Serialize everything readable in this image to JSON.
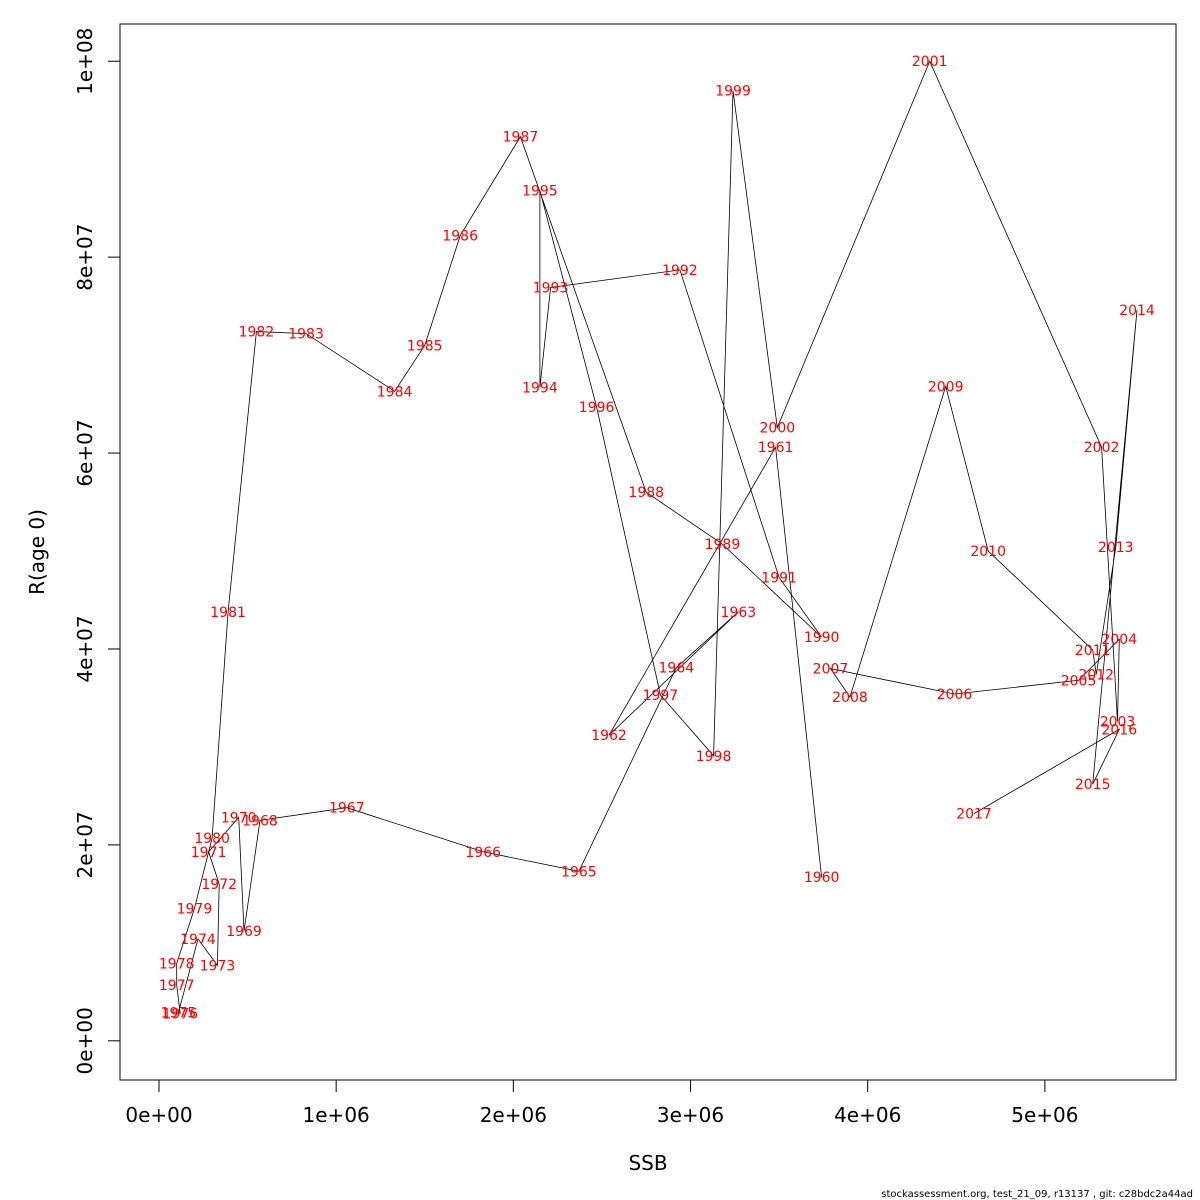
{
  "chart_data": {
    "type": "line",
    "title": "",
    "xlabel": "SSB",
    "ylabel": "R(age 0)",
    "xlim": [
      -220000,
      5740000
    ],
    "ylim": [
      -4000000,
      103800000
    ],
    "x_ticks": [
      0,
      1000000,
      2000000,
      3000000,
      4000000,
      5000000
    ],
    "x_tick_labels": [
      "0e+00",
      "1e+06",
      "2e+06",
      "3e+06",
      "4e+06",
      "5e+06"
    ],
    "y_ticks": [
      0,
      20000000,
      40000000,
      60000000,
      80000000,
      100000000
    ],
    "y_tick_labels": [
      "0e+00",
      "2e+07",
      "4e+07",
      "6e+07",
      "8e+07",
      "1e+08"
    ],
    "grid": false,
    "line_color": "#000000",
    "label_color": "#ff0000",
    "points": [
      {
        "year": "1960",
        "ssb": 3740000,
        "r": 16700000
      },
      {
        "year": "1961",
        "ssb": 3480000,
        "r": 60600000
      },
      {
        "year": "1962",
        "ssb": 2540000,
        "r": 31200000
      },
      {
        "year": "1963",
        "ssb": 3270000,
        "r": 43800000
      },
      {
        "year": "1964",
        "ssb": 2920000,
        "r": 38100000
      },
      {
        "year": "1965",
        "ssb": 2370000,
        "r": 17300000
      },
      {
        "year": "1966",
        "ssb": 1830000,
        "r": 19300000
      },
      {
        "year": "1967",
        "ssb": 1060000,
        "r": 23800000
      },
      {
        "year": "1968",
        "ssb": 570000,
        "r": 22500000
      },
      {
        "year": "1969",
        "ssb": 480000,
        "r": 11200000
      },
      {
        "year": "1970",
        "ssb": 450000,
        "r": 22800000
      },
      {
        "year": "1971",
        "ssb": 280000,
        "r": 19300000
      },
      {
        "year": "1972",
        "ssb": 340000,
        "r": 16000000
      },
      {
        "year": "1973",
        "ssb": 330000,
        "r": 7700000
      },
      {
        "year": "1974",
        "ssb": 220000,
        "r": 10400000
      },
      {
        "year": "1975",
        "ssb": 110000,
        "r": 2900000
      },
      {
        "year": "1976",
        "ssb": 120000,
        "r": 2800000
      },
      {
        "year": "1977",
        "ssb": 100000,
        "r": 5700000
      },
      {
        "year": "1978",
        "ssb": 100000,
        "r": 7900000
      },
      {
        "year": "1979",
        "ssb": 200000,
        "r": 13500000
      },
      {
        "year": "1980",
        "ssb": 300000,
        "r": 20700000
      },
      {
        "year": "1981",
        "ssb": 390000,
        "r": 43800000
      },
      {
        "year": "1982",
        "ssb": 550000,
        "r": 72400000
      },
      {
        "year": "1983",
        "ssb": 830000,
        "r": 72200000
      },
      {
        "year": "1984",
        "ssb": 1330000,
        "r": 66300000
      },
      {
        "year": "1985",
        "ssb": 1500000,
        "r": 71000000
      },
      {
        "year": "1986",
        "ssb": 1700000,
        "r": 82200000
      },
      {
        "year": "1987",
        "ssb": 2040000,
        "r": 92300000
      },
      {
        "year": "1988",
        "ssb": 2750000,
        "r": 56000000
      },
      {
        "year": "1989",
        "ssb": 3180000,
        "r": 50700000
      },
      {
        "year": "1990",
        "ssb": 3740000,
        "r": 41200000
      },
      {
        "year": "1991",
        "ssb": 3500000,
        "r": 47300000
      },
      {
        "year": "1992",
        "ssb": 2940000,
        "r": 78700000
      },
      {
        "year": "1993",
        "ssb": 2210000,
        "r": 76900000
      },
      {
        "year": "1994",
        "ssb": 2150000,
        "r": 66700000
      },
      {
        "year": "1995",
        "ssb": 2150000,
        "r": 86800000
      },
      {
        "year": "1996",
        "ssb": 2470000,
        "r": 64700000
      },
      {
        "year": "1997",
        "ssb": 2830000,
        "r": 35300000
      },
      {
        "year": "1998",
        "ssb": 3130000,
        "r": 29100000
      },
      {
        "year": "1999",
        "ssb": 3240000,
        "r": 97000000
      },
      {
        "year": "2000",
        "ssb": 3490000,
        "r": 62600000
      },
      {
        "year": "2001",
        "ssb": 4350000,
        "r": 100000000
      },
      {
        "year": "2002",
        "ssb": 5320000,
        "r": 60600000
      },
      {
        "year": "2003",
        "ssb": 5410000,
        "r": 32600000
      },
      {
        "year": "2004",
        "ssb": 5420000,
        "r": 41000000
      },
      {
        "year": "2005",
        "ssb": 5190000,
        "r": 36800000
      },
      {
        "year": "2006",
        "ssb": 4490000,
        "r": 35400000
      },
      {
        "year": "2007",
        "ssb": 3790000,
        "r": 38000000
      },
      {
        "year": "2008",
        "ssb": 3900000,
        "r": 35100000
      },
      {
        "year": "2009",
        "ssb": 4440000,
        "r": 66800000
      },
      {
        "year": "2010",
        "ssb": 4680000,
        "r": 50000000
      },
      {
        "year": "2011",
        "ssb": 5270000,
        "r": 39900000
      },
      {
        "year": "2012",
        "ssb": 5290000,
        "r": 37400000
      },
      {
        "year": "2013",
        "ssb": 5400000,
        "r": 50400000
      },
      {
        "year": "2014",
        "ssb": 5520000,
        "r": 74600000
      },
      {
        "year": "2015",
        "ssb": 5270000,
        "r": 26200000
      },
      {
        "year": "2016",
        "ssb": 5420000,
        "r": 31800000
      },
      {
        "year": "2017",
        "ssb": 4600000,
        "r": 23200000
      }
    ]
  },
  "footer": {
    "text": "stockassessment.org, test_21_09, r13137 , git: c28bdc2a44ad"
  }
}
